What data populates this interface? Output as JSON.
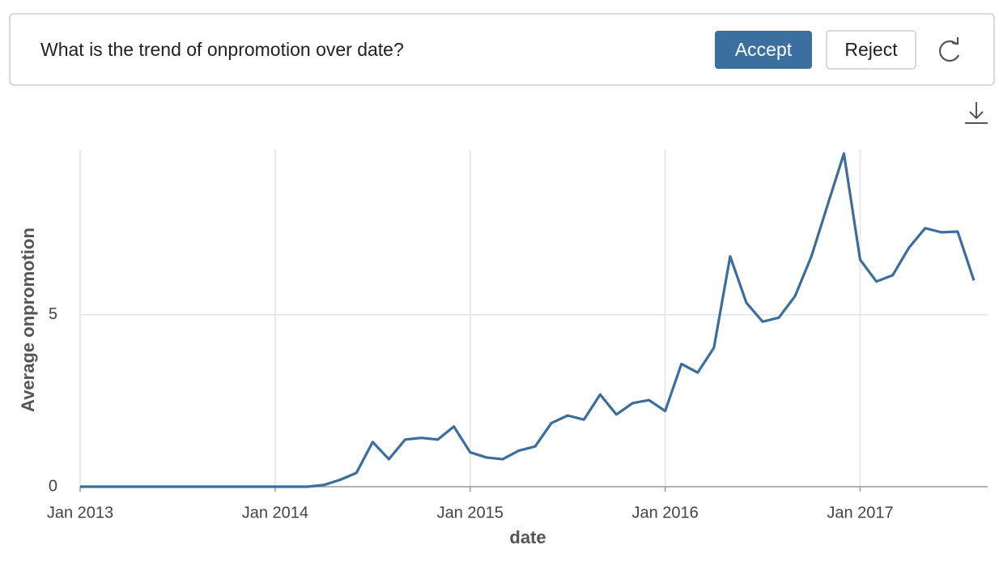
{
  "header": {
    "question": "What is the trend of onpromotion over date?",
    "accept": "Accept",
    "reject": "Reject"
  },
  "chart_data": {
    "type": "line",
    "x_label": "date",
    "y_label": "Average onpromotion",
    "color": "#3b6e9c",
    "grid": true,
    "x": [
      "2013-01",
      "2013-02",
      "2013-03",
      "2013-04",
      "2013-05",
      "2013-06",
      "2013-07",
      "2013-08",
      "2013-09",
      "2013-10",
      "2013-11",
      "2013-12",
      "2014-01",
      "2014-02",
      "2014-03",
      "2014-04",
      "2014-05",
      "2014-06",
      "2014-07",
      "2014-08",
      "2014-09",
      "2014-10",
      "2014-11",
      "2014-12",
      "2015-01",
      "2015-02",
      "2015-03",
      "2015-04",
      "2015-05",
      "2015-06",
      "2015-07",
      "2015-08",
      "2015-09",
      "2015-10",
      "2015-11",
      "2015-12",
      "2016-01",
      "2016-02",
      "2016-03",
      "2016-04",
      "2016-05",
      "2016-06",
      "2016-07",
      "2016-08",
      "2016-09",
      "2016-10",
      "2016-11",
      "2016-12",
      "2017-01",
      "2017-02",
      "2017-03",
      "2017-04",
      "2017-05",
      "2017-06",
      "2017-07",
      "2017-08"
    ],
    "values": [
      0,
      0,
      0,
      0,
      0,
      0,
      0,
      0,
      0,
      0,
      0,
      0,
      0,
      0,
      0,
      0.05,
      0.2,
      0.4,
      1.3,
      0.8,
      1.37,
      1.42,
      1.37,
      1.75,
      1.0,
      0.85,
      0.8,
      1.05,
      1.17,
      1.85,
      2.07,
      1.95,
      2.68,
      2.1,
      2.43,
      2.52,
      2.2,
      3.57,
      3.32,
      4.04,
      6.7,
      5.35,
      4.8,
      4.92,
      5.55,
      6.7,
      8.2,
      9.69,
      6.6,
      5.97,
      6.15,
      6.95,
      7.52,
      7.4,
      7.42,
      6.0
    ],
    "xlim": [
      "2013-01",
      "2017-08"
    ],
    "ylim": [
      0,
      9.8
    ],
    "xticks": [
      {
        "value": "2013-01",
        "label": "Jan 2013"
      },
      {
        "value": "2014-01",
        "label": "Jan 2014"
      },
      {
        "value": "2015-01",
        "label": "Jan 2015"
      },
      {
        "value": "2016-01",
        "label": "Jan 2016"
      },
      {
        "value": "2017-01",
        "label": "Jan 2017"
      }
    ],
    "yticks": [
      0,
      5
    ]
  }
}
